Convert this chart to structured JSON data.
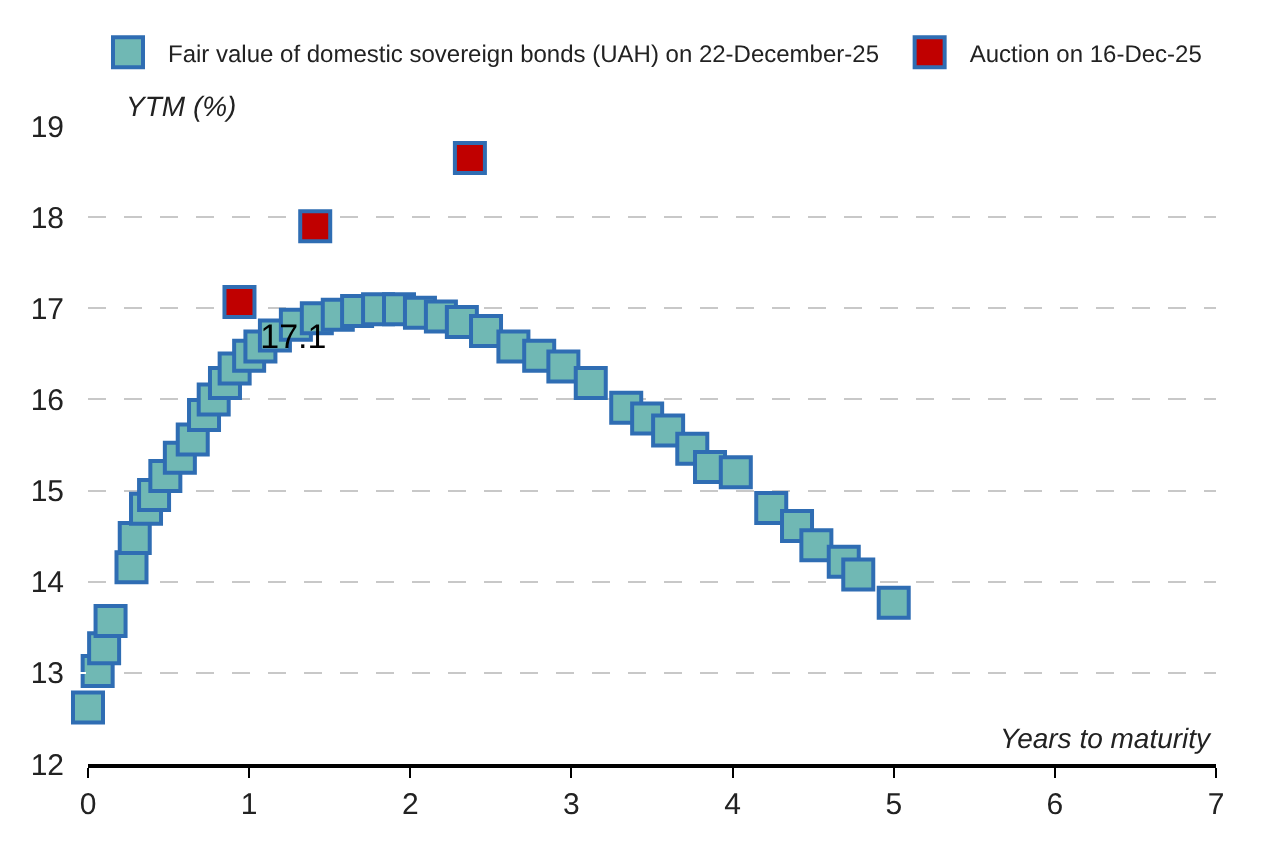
{
  "chart_data": {
    "type": "scatter",
    "xlabel": "Years to maturity",
    "ylabel": "YTM (%)",
    "xlim": [
      0,
      7
    ],
    "ylim": [
      12,
      19
    ],
    "xticks": [
      0,
      1,
      2,
      3,
      4,
      5,
      6,
      7
    ],
    "yticks": [
      12,
      13,
      14,
      15,
      16,
      17,
      18,
      19
    ],
    "grid": "y",
    "legend": "top",
    "marker": "square",
    "series": [
      {
        "name": "Fair value of domestic sovereign bonds (UAH) on 22-December-25",
        "color": "#70b8b4",
        "x": [
          0,
          0.06,
          0.1,
          0.14,
          0.27,
          0.29,
          0.36,
          0.41,
          0.48,
          0.57,
          0.65,
          0.72,
          0.78,
          0.85,
          0.91,
          1.0,
          1.07,
          1.16,
          1.29,
          1.42,
          1.55,
          1.67,
          1.8,
          1.93,
          2.06,
          2.19,
          2.32,
          2.47,
          2.64,
          2.8,
          2.95,
          3.12,
          3.34,
          3.47,
          3.6,
          3.75,
          3.86,
          4.02,
          4.24,
          4.4,
          4.52,
          4.69,
          4.78,
          5.0
        ],
        "values": [
          12.62,
          13.02,
          13.27,
          13.57,
          14.16,
          14.48,
          14.8,
          14.95,
          15.16,
          15.36,
          15.56,
          15.83,
          16.0,
          16.18,
          16.34,
          16.48,
          16.58,
          16.7,
          16.82,
          16.89,
          16.93,
          16.97,
          16.99,
          16.99,
          16.95,
          16.91,
          16.85,
          16.75,
          16.58,
          16.48,
          16.36,
          16.18,
          15.91,
          15.79,
          15.66,
          15.46,
          15.26,
          15.2,
          14.81,
          14.61,
          14.4,
          14.22,
          14.08,
          13.77
        ]
      },
      {
        "name": "Auction on 16-Dec-25",
        "color": "#c00000",
        "x": [
          0.94,
          1.41,
          2.37
        ],
        "values": [
          17.07,
          17.9,
          18.65
        ],
        "value_labels": [
          "17.1",
          null,
          null
        ]
      }
    ]
  }
}
